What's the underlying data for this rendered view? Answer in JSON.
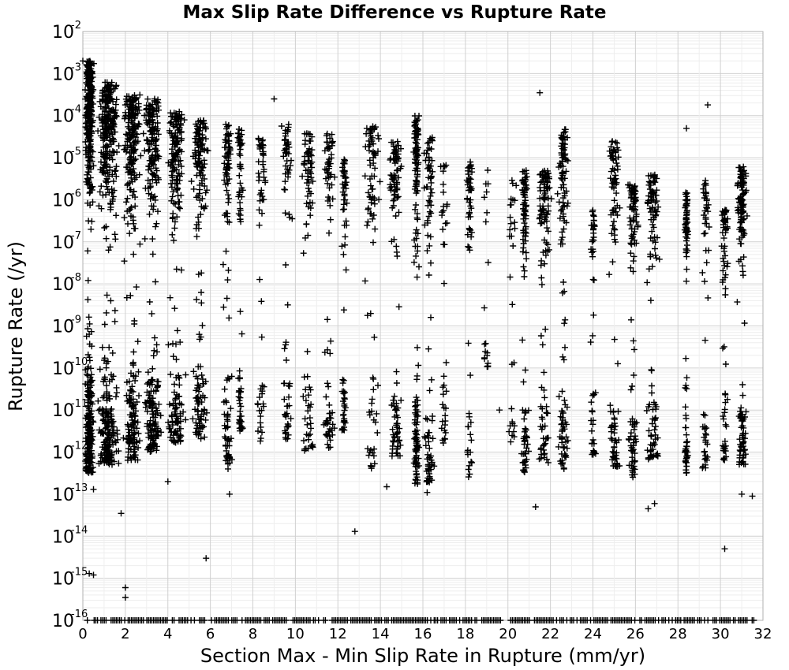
{
  "chart_data": {
    "type": "scatter",
    "title": "Max Slip Rate Difference vs Rupture Rate",
    "xlabel": "Section Max - Min Slip Rate in Rupture (mm/yr)",
    "ylabel": "Rupture Rate (/yr)",
    "xlim": [
      0,
      32
    ],
    "ylim": [
      1e-16,
      0.01
    ],
    "yscale": "log",
    "grid": true,
    "marker": "+",
    "marker_color": "#000000",
    "xticks": [
      "0",
      "2",
      "4",
      "6",
      "8",
      "10",
      "12",
      "14",
      "16",
      "18",
      "20",
      "22",
      "24",
      "26",
      "28",
      "30",
      "32"
    ],
    "yticks": [
      {
        "base": "10",
        "exp": "-2"
      },
      {
        "base": "10",
        "exp": "-3"
      },
      {
        "base": "10",
        "exp": "-4"
      },
      {
        "base": "10",
        "exp": "-5"
      },
      {
        "base": "10",
        "exp": "-6"
      },
      {
        "base": "10",
        "exp": "-7"
      },
      {
        "base": "10",
        "exp": "-8"
      },
      {
        "base": "10",
        "exp": "-9"
      },
      {
        "base": "10",
        "exp": "-10"
      },
      {
        "base": "10",
        "exp": "-11"
      },
      {
        "base": "10",
        "exp": "-12"
      },
      {
        "base": "10",
        "exp": "-13"
      },
      {
        "base": "10",
        "exp": "-14"
      },
      {
        "base": "10",
        "exp": "-15"
      },
      {
        "base": "10",
        "exp": "-16"
      }
    ],
    "clusters": [
      {
        "x": 0.3,
        "width": 0.5,
        "log_min": -12.5,
        "log_max": -2.7,
        "n": 500
      },
      {
        "x": 1.2,
        "width": 1.2,
        "log_min": -12.3,
        "log_max": -3.2,
        "n": 420
      },
      {
        "x": 2.3,
        "width": 1.0,
        "log_min": -12.2,
        "log_max": -3.5,
        "n": 300
      },
      {
        "x": 3.3,
        "width": 1.0,
        "log_min": -12.0,
        "log_max": -3.6,
        "n": 260
      },
      {
        "x": 4.4,
        "width": 1.0,
        "log_min": -11.8,
        "log_max": -3.9,
        "n": 220
      },
      {
        "x": 5.5,
        "width": 0.9,
        "log_min": -11.7,
        "log_max": -4.1,
        "n": 180
      },
      {
        "x": 6.8,
        "width": 0.5,
        "log_min": -12.4,
        "log_max": -4.2,
        "n": 120
      },
      {
        "x": 7.4,
        "width": 0.3,
        "log_min": -11.5,
        "log_max": -4.3,
        "n": 80
      },
      {
        "x": 8.4,
        "width": 0.5,
        "log_min": -11.8,
        "log_max": -4.5,
        "n": 60
      },
      {
        "x": 9.6,
        "width": 0.6,
        "log_min": -11.8,
        "log_max": -4.2,
        "n": 80
      },
      {
        "x": 10.6,
        "width": 0.7,
        "log_min": -12.0,
        "log_max": -4.4,
        "n": 90
      },
      {
        "x": 11.6,
        "width": 0.7,
        "log_min": -11.9,
        "log_max": -4.4,
        "n": 80
      },
      {
        "x": 12.3,
        "width": 0.3,
        "log_min": -11.5,
        "log_max": -5.0,
        "n": 70
      },
      {
        "x": 13.6,
        "width": 0.9,
        "log_min": -12.4,
        "log_max": -4.2,
        "n": 90
      },
      {
        "x": 14.7,
        "width": 0.8,
        "log_min": -12.1,
        "log_max": -4.6,
        "n": 120
      },
      {
        "x": 15.7,
        "width": 0.3,
        "log_min": -12.8,
        "log_max": -4.0,
        "n": 160
      },
      {
        "x": 16.3,
        "width": 0.6,
        "log_min": -12.8,
        "log_max": -4.5,
        "n": 100
      },
      {
        "x": 17.0,
        "width": 0.5,
        "log_min": -11.8,
        "log_max": -5.0,
        "n": 40
      },
      {
        "x": 18.2,
        "width": 0.4,
        "log_min": -12.6,
        "log_max": -5.1,
        "n": 60
      },
      {
        "x": 19.0,
        "width": 0.3,
        "log_min": -10.0,
        "log_max": -5.2,
        "n": 20
      },
      {
        "x": 20.2,
        "width": 0.5,
        "log_min": -11.8,
        "log_max": -5.5,
        "n": 30
      },
      {
        "x": 20.8,
        "width": 0.4,
        "log_min": -12.5,
        "log_max": -5.3,
        "n": 110
      },
      {
        "x": 21.7,
        "width": 0.8,
        "log_min": -12.3,
        "log_max": -5.3,
        "n": 120
      },
      {
        "x": 22.6,
        "width": 0.6,
        "log_min": -12.4,
        "log_max": -4.3,
        "n": 130
      },
      {
        "x": 24.0,
        "width": 0.3,
        "log_min": -12.2,
        "log_max": -6.2,
        "n": 50
      },
      {
        "x": 25.0,
        "width": 0.6,
        "log_min": -12.4,
        "log_max": -4.6,
        "n": 110
      },
      {
        "x": 25.9,
        "width": 0.6,
        "log_min": -12.6,
        "log_max": -5.6,
        "n": 120
      },
      {
        "x": 26.8,
        "width": 0.8,
        "log_min": -12.2,
        "log_max": -5.4,
        "n": 120
      },
      {
        "x": 28.4,
        "width": 0.2,
        "log_min": -12.5,
        "log_max": -5.8,
        "n": 90
      },
      {
        "x": 29.3,
        "width": 0.4,
        "log_min": -12.4,
        "log_max": -5.5,
        "n": 60
      },
      {
        "x": 30.2,
        "width": 0.4,
        "log_min": -12.2,
        "log_max": -6.2,
        "n": 70
      },
      {
        "x": 31.0,
        "width": 0.6,
        "log_min": -12.3,
        "log_max": -5.2,
        "n": 150
      }
    ],
    "notable_points": [
      {
        "x": 0.0,
        "y": 0.002
      },
      {
        "x": 0.3,
        "y": 1.3e-15
      },
      {
        "x": 0.5,
        "y": 1.2e-15
      },
      {
        "x": 0.5,
        "y": 1.3e-13
      },
      {
        "x": 1.8,
        "y": 3.5e-14
      },
      {
        "x": 2.0,
        "y": 6e-16
      },
      {
        "x": 2.0,
        "y": 3.5e-16
      },
      {
        "x": 4.0,
        "y": 2e-13
      },
      {
        "x": 5.8,
        "y": 3e-15
      },
      {
        "x": 6.9,
        "y": 1e-13
      },
      {
        "x": 12.8,
        "y": 1.3e-14
      },
      {
        "x": 14.3,
        "y": 1.5e-13
      },
      {
        "x": 16.2,
        "y": 1.1e-13
      },
      {
        "x": 18.2,
        "y": 3e-13
      },
      {
        "x": 21.3,
        "y": 5e-14
      },
      {
        "x": 21.5,
        "y": 0.00035
      },
      {
        "x": 26.6,
        "y": 4.5e-14
      },
      {
        "x": 26.9,
        "y": 6e-14
      },
      {
        "x": 28.4,
        "y": 5e-05
      },
      {
        "x": 29.4,
        "y": 0.00018
      },
      {
        "x": 30.2,
        "y": 5e-15
      },
      {
        "x": 31.0,
        "y": 1e-13
      },
      {
        "x": 31.5,
        "y": 9e-14
      },
      {
        "x": 19.6,
        "y": 1e-11
      },
      {
        "x": 9.0,
        "y": 0.00025
      }
    ],
    "floor_value": 1e-16
  }
}
